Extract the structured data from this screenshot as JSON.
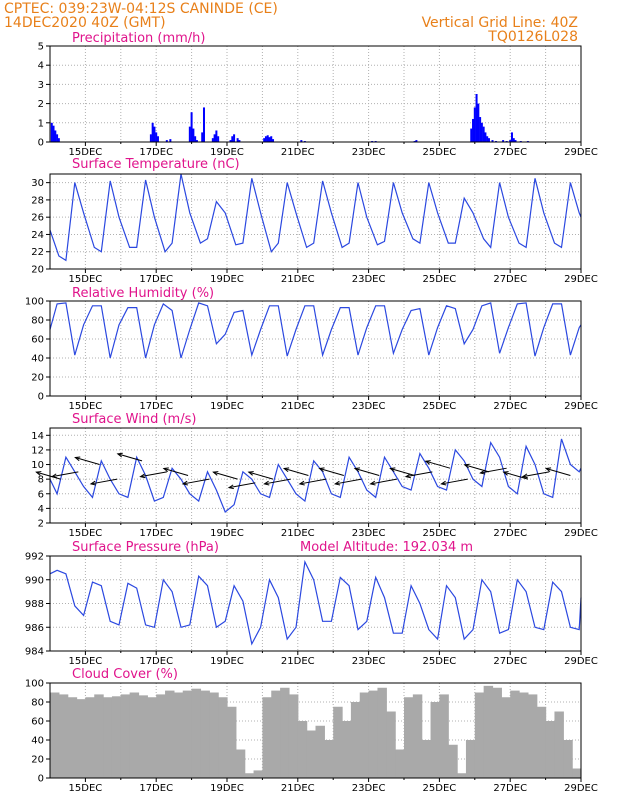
{
  "header": {
    "line1_left": "CPTEC:   039:23W-04:12S   CANINDE (CE)",
    "line2_left": "14DEC2020 40Z (GMT)",
    "line2_right": "Vertical Grid Line: 40Z",
    "line3_right": "TQ0126L028"
  },
  "chart_data": [
    {
      "type": "bar",
      "title": "Precipitation (mm/h)",
      "ylim": [
        0,
        5
      ],
      "yticks": [
        0,
        1,
        2,
        3,
        4,
        5
      ],
      "xticks": [
        "15DEC",
        "17DEC",
        "19DEC",
        "21DEC",
        "23DEC",
        "25DEC",
        "27DEC",
        "29DEC"
      ],
      "xlim_days": [
        14.0,
        29.0
      ],
      "color": "#0000ff",
      "x_days": [
        14.05,
        14.1,
        14.15,
        14.2,
        14.25,
        16.85,
        16.9,
        16.95,
        17.0,
        17.05,
        17.3,
        17.4,
        17.95,
        18.0,
        18.05,
        18.1,
        18.15,
        18.3,
        18.35,
        18.6,
        18.65,
        18.7,
        18.75,
        19.1,
        19.15,
        19.2,
        19.3,
        19.35,
        20.05,
        20.1,
        20.15,
        20.2,
        20.25,
        20.3,
        21.1,
        21.2,
        23.1,
        23.2,
        24.3,
        24.35,
        25.9,
        25.95,
        26.0,
        26.05,
        26.1,
        26.15,
        26.2,
        26.25,
        26.3,
        26.35,
        26.4,
        26.5,
        26.6,
        26.8,
        26.9,
        27.0,
        27.05,
        27.1,
        27.15,
        27.3,
        27.5
      ],
      "values": [
        1.0,
        0.85,
        0.6,
        0.4,
        0.2,
        0.4,
        1.0,
        0.8,
        0.5,
        0.3,
        0.1,
        0.15,
        0.8,
        1.55,
        0.7,
        0.3,
        0.1,
        0.5,
        1.8,
        0.2,
        0.4,
        0.6,
        0.3,
        0.1,
        0.3,
        0.4,
        0.2,
        0.1,
        0.2,
        0.3,
        0.35,
        0.25,
        0.3,
        0.15,
        0.1,
        0.05,
        0.05,
        0.05,
        0.05,
        0.1,
        0.7,
        1.2,
        1.8,
        2.5,
        2.0,
        1.3,
        1.0,
        0.8,
        0.5,
        0.3,
        0.2,
        0.1,
        0.05,
        0.1,
        0.05,
        0.1,
        0.5,
        0.2,
        0.1,
        0.05,
        0.05
      ]
    },
    {
      "type": "line",
      "title": "Surface Temperature (nC)",
      "ylim": [
        20,
        31
      ],
      "yticks": [
        20,
        22,
        24,
        26,
        28,
        30
      ],
      "xticks": [
        "15DEC",
        "17DEC",
        "19DEC",
        "21DEC",
        "23DEC",
        "25DEC",
        "27DEC",
        "29DEC"
      ],
      "xlim_days": [
        14.0,
        29.0
      ],
      "color": "#2b48e0",
      "x_days": [
        14.0,
        14.25,
        14.45,
        14.7,
        14.95,
        15.25,
        15.45,
        15.7,
        15.95,
        16.25,
        16.45,
        16.7,
        16.95,
        17.25,
        17.45,
        17.7,
        17.95,
        18.25,
        18.45,
        18.7,
        18.95,
        19.25,
        19.45,
        19.7,
        19.95,
        20.25,
        20.45,
        20.7,
        20.95,
        21.25,
        21.45,
        21.7,
        21.95,
        22.25,
        22.45,
        22.7,
        22.95,
        23.25,
        23.45,
        23.7,
        23.95,
        24.25,
        24.45,
        24.7,
        24.95,
        25.25,
        25.45,
        25.7,
        25.95,
        26.25,
        26.45,
        26.7,
        26.95,
        27.25,
        27.45,
        27.7,
        27.95,
        28.25,
        28.45,
        28.7,
        28.95,
        29.0
      ],
      "values": [
        24.5,
        21.5,
        21.0,
        30.0,
        26.5,
        22.5,
        22.0,
        30.2,
        26.0,
        22.5,
        22.5,
        30.3,
        26.0,
        22.0,
        23.0,
        31.0,
        26.5,
        23.0,
        23.5,
        27.8,
        26.5,
        22.8,
        23.0,
        30.5,
        26.5,
        22.0,
        23.0,
        30.0,
        26.5,
        22.5,
        23.0,
        30.2,
        26.5,
        22.5,
        23.0,
        30.0,
        26.0,
        22.8,
        23.2,
        30.0,
        26.5,
        23.5,
        23.0,
        30.0,
        26.5,
        23.0,
        23.0,
        28.2,
        26.5,
        23.5,
        22.5,
        30.0,
        26.0,
        23.0,
        22.5,
        30.5,
        26.5,
        23.0,
        22.5,
        30.0,
        26.5,
        26.0
      ]
    },
    {
      "type": "line",
      "title": "Relative Humidity (%)",
      "ylim": [
        0,
        100
      ],
      "yticks": [
        0,
        20,
        40,
        60,
        80,
        100
      ],
      "xticks": [
        "15DEC",
        "17DEC",
        "19DEC",
        "21DEC",
        "23DEC",
        "25DEC",
        "27DEC",
        "29DEC"
      ],
      "xlim_days": [
        14.0,
        29.0
      ],
      "color": "#2b48e0",
      "x_days": [
        14.0,
        14.2,
        14.45,
        14.7,
        14.95,
        15.2,
        15.45,
        15.7,
        15.95,
        16.2,
        16.45,
        16.7,
        16.95,
        17.2,
        17.45,
        17.7,
        17.95,
        18.2,
        18.45,
        18.7,
        18.95,
        19.2,
        19.45,
        19.7,
        19.95,
        20.2,
        20.45,
        20.7,
        20.95,
        21.2,
        21.45,
        21.7,
        21.95,
        22.2,
        22.45,
        22.7,
        22.95,
        23.2,
        23.45,
        23.7,
        23.95,
        24.2,
        24.45,
        24.7,
        24.95,
        25.2,
        25.45,
        25.7,
        25.95,
        26.2,
        26.45,
        26.7,
        26.95,
        27.2,
        27.45,
        27.7,
        27.95,
        28.2,
        28.45,
        28.7,
        28.95,
        29.0
      ],
      "values": [
        70.0,
        97.0,
        98.0,
        43.0,
        75.0,
        95.0,
        95.0,
        40.0,
        75.0,
        93.0,
        93.0,
        40.0,
        75.0,
        97.0,
        90.0,
        40.0,
        70.0,
        98.0,
        95.0,
        55.0,
        65.0,
        88.0,
        90.0,
        43.0,
        70.0,
        95.0,
        95.0,
        42.0,
        70.0,
        95.0,
        95.0,
        43.0,
        70.0,
        93.0,
        93.0,
        43.0,
        72.0,
        95.0,
        95.0,
        45.0,
        70.0,
        90.0,
        92.0,
        43.0,
        72.0,
        95.0,
        92.0,
        55.0,
        70.0,
        95.0,
        98.0,
        45.0,
        72.0,
        97.0,
        98.0,
        42.0,
        72.0,
        97.0,
        97.0,
        43.0,
        72.0,
        75.0
      ]
    },
    {
      "type": "line",
      "title": "Surface Wind (m/s)",
      "ylim": [
        2,
        15
      ],
      "yticks": [
        2,
        4,
        6,
        8,
        10,
        12,
        14
      ],
      "xticks": [
        "15DEC",
        "17DEC",
        "19DEC",
        "21DEC",
        "23DEC",
        "25DEC",
        "27DEC",
        "29DEC"
      ],
      "xlim_days": [
        14.0,
        29.0
      ],
      "color": "#2b48e0",
      "x_days": [
        14.0,
        14.2,
        14.45,
        14.7,
        14.95,
        15.2,
        15.45,
        15.7,
        15.95,
        16.2,
        16.45,
        16.7,
        16.95,
        17.2,
        17.45,
        17.7,
        17.95,
        18.2,
        18.45,
        18.7,
        18.95,
        19.2,
        19.45,
        19.7,
        19.95,
        20.2,
        20.45,
        20.7,
        20.95,
        21.2,
        21.45,
        21.7,
        21.95,
        22.2,
        22.45,
        22.7,
        22.95,
        23.2,
        23.45,
        23.7,
        23.95,
        24.2,
        24.45,
        24.7,
        24.95,
        25.2,
        25.45,
        25.7,
        25.95,
        26.2,
        26.45,
        26.7,
        26.95,
        27.2,
        27.45,
        27.7,
        27.95,
        28.2,
        28.45,
        28.7,
        28.95,
        29.0
      ],
      "values": [
        8.0,
        6.0,
        11.0,
        9.0,
        7.0,
        5.5,
        10.5,
        8.0,
        6.0,
        5.5,
        11.0,
        8.5,
        5.0,
        5.5,
        9.5,
        8.0,
        6.0,
        5.0,
        9.0,
        6.5,
        3.5,
        4.5,
        9.0,
        8.0,
        6.0,
        5.5,
        10.0,
        8.0,
        6.0,
        5.0,
        10.5,
        9.0,
        6.0,
        5.5,
        11.0,
        9.0,
        6.5,
        5.5,
        11.0,
        9.0,
        7.0,
        6.5,
        11.5,
        9.5,
        7.0,
        6.5,
        12.0,
        10.5,
        8.0,
        7.0,
        13.0,
        11.0,
        7.0,
        6.0,
        12.5,
        10.0,
        6.0,
        5.5,
        13.5,
        10.0,
        9.0,
        9.5
      ],
      "arrows_days": [
        14.3,
        14.8,
        15.4,
        15.9,
        16.6,
        17.3,
        17.9,
        18.5,
        19.3,
        19.8,
        20.3,
        20.8,
        21.3,
        21.8,
        22.3,
        22.8,
        23.3,
        23.8,
        24.3,
        24.8,
        25.3,
        25.8,
        26.4,
        26.9,
        27.5,
        28.1,
        28.7
      ],
      "arrows_speed": [
        8.0,
        9.0,
        10.0,
        8.0,
        10.5,
        9.0,
        8.5,
        8.0,
        8.0,
        7.5,
        8.0,
        8.0,
        8.5,
        8.0,
        8.5,
        8.0,
        8.5,
        8.0,
        8.5,
        9.0,
        9.5,
        8.0,
        9.0,
        9.5,
        8.0,
        9.0,
        8.5
      ]
    },
    {
      "type": "line",
      "title": "Surface Pressure (hPa)",
      "annotation": "Model Altitude: 192.034 m",
      "ylim": [
        984,
        992
      ],
      "yticks": [
        984,
        986,
        988,
        990,
        992
      ],
      "xticks": [
        "15DEC",
        "17DEC",
        "19DEC",
        "21DEC",
        "23DEC",
        "25DEC",
        "27DEC",
        "29DEC"
      ],
      "xlim_days": [
        14.0,
        29.0
      ],
      "color": "#2b48e0",
      "x_days": [
        14.0,
        14.2,
        14.45,
        14.7,
        14.95,
        15.2,
        15.45,
        15.7,
        15.95,
        16.2,
        16.45,
        16.7,
        16.95,
        17.2,
        17.45,
        17.7,
        17.95,
        18.2,
        18.45,
        18.7,
        18.95,
        19.2,
        19.45,
        19.7,
        19.95,
        20.2,
        20.45,
        20.7,
        20.95,
        21.2,
        21.45,
        21.7,
        21.95,
        22.2,
        22.45,
        22.7,
        22.95,
        23.2,
        23.45,
        23.7,
        23.95,
        24.2,
        24.45,
        24.7,
        24.95,
        25.2,
        25.45,
        25.7,
        25.95,
        26.2,
        26.45,
        26.7,
        26.95,
        27.2,
        27.45,
        27.7,
        27.95,
        28.2,
        28.45,
        28.7,
        28.95,
        29.0
      ],
      "values": [
        990.5,
        990.8,
        990.5,
        987.8,
        987.0,
        989.8,
        989.5,
        986.5,
        986.2,
        989.7,
        989.3,
        986.2,
        986.0,
        990.0,
        989.0,
        986.0,
        986.2,
        990.3,
        989.5,
        986.0,
        986.5,
        989.5,
        988.2,
        984.6,
        986.0,
        990.0,
        988.5,
        985.0,
        986.0,
        991.5,
        990.0,
        986.5,
        986.5,
        990.2,
        989.5,
        985.8,
        986.5,
        990.2,
        988.5,
        985.5,
        985.5,
        989.5,
        988.0,
        985.8,
        985.0,
        989.5,
        988.5,
        985.0,
        985.8,
        990.0,
        989.0,
        985.5,
        985.8,
        990.0,
        989.0,
        986.0,
        985.8,
        989.8,
        989.0,
        986.0,
        985.8,
        988.5
      ]
    },
    {
      "type": "bar",
      "title": "Cloud Cover (%)",
      "ylim": [
        0,
        100
      ],
      "yticks": [
        0,
        20,
        40,
        60,
        80,
        100
      ],
      "xticks": [
        "15DEC",
        "17DEC",
        "19DEC",
        "21DEC",
        "23DEC",
        "25DEC",
        "27DEC",
        "29DEC"
      ],
      "xlim_days": [
        14.0,
        29.0
      ],
      "color": "#a9a9a9",
      "x_days": [
        14.0,
        14.25,
        14.5,
        14.75,
        15.0,
        15.25,
        15.5,
        15.75,
        16.0,
        16.25,
        16.5,
        16.75,
        17.0,
        17.25,
        17.5,
        17.75,
        18.0,
        18.25,
        18.5,
        18.75,
        19.0,
        19.25,
        19.5,
        19.75,
        20.0,
        20.25,
        20.5,
        20.75,
        21.0,
        21.25,
        21.5,
        21.75,
        22.0,
        22.25,
        22.5,
        22.75,
        23.0,
        23.25,
        23.5,
        23.75,
        24.0,
        24.25,
        24.5,
        24.75,
        25.0,
        25.25,
        25.5,
        25.75,
        26.0,
        26.25,
        26.5,
        26.75,
        27.0,
        27.25,
        27.5,
        27.75,
        28.0,
        28.25,
        28.5,
        28.75,
        29.0
      ],
      "values": [
        90,
        88,
        85,
        83,
        85,
        88,
        85,
        86,
        88,
        90,
        87,
        85,
        88,
        92,
        90,
        92,
        94,
        92,
        90,
        85,
        75,
        30,
        5,
        8,
        85,
        92,
        95,
        88,
        60,
        50,
        55,
        40,
        75,
        60,
        80,
        90,
        92,
        95,
        70,
        30,
        85,
        88,
        40,
        80,
        88,
        35,
        5,
        40,
        90,
        97,
        95,
        85,
        92,
        90,
        88,
        75,
        60,
        70,
        40,
        10,
        5
      ]
    }
  ]
}
